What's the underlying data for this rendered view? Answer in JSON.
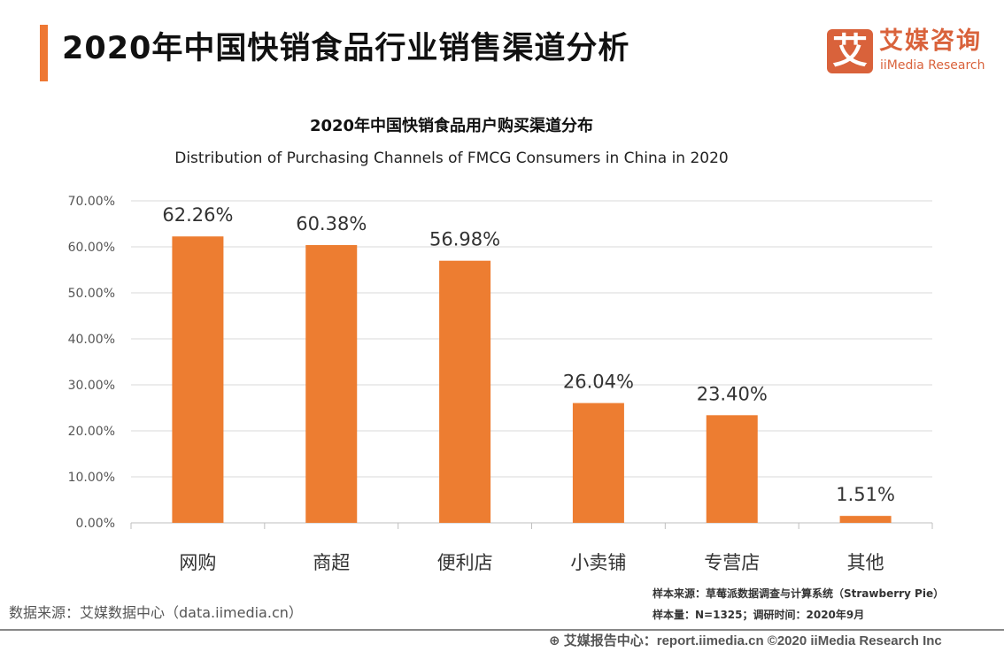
{
  "header": {
    "title": "2020年中国快销食品行业销售渠道分析"
  },
  "logo": {
    "mark": "艾",
    "name_cn": "艾媒咨询",
    "name_en": "iiMedia Research"
  },
  "chart_data": {
    "type": "bar",
    "title": "2020年中国快销食品用户购买渠道分布",
    "subtitle": "Distribution of Purchasing Channels of FMCG Consumers in China in 2020",
    "categories": [
      "网购",
      "商超",
      "便利店",
      "小卖铺",
      "专营店",
      "其他"
    ],
    "values": [
      62.26,
      60.38,
      56.98,
      26.04,
      23.4,
      1.51
    ],
    "data_labels": [
      "62.26%",
      "60.38%",
      "56.98%",
      "26.04%",
      "23.40%",
      "1.51%"
    ],
    "ylim": [
      0,
      70
    ],
    "yticks": [
      "0.00%",
      "10.00%",
      "20.00%",
      "30.00%",
      "40.00%",
      "50.00%",
      "60.00%",
      "70.00%"
    ],
    "grid": true,
    "bar_color": "#ed7d31"
  },
  "footer": {
    "source": "数据来源：艾媒数据中心（data.iimedia.cn）",
    "sample_source": "样本来源：草莓派数据调查与计算系统（Strawberry Pie）",
    "sample_size": "样本量：N=1325；调研时间：2020年9月",
    "copyright": "艾媒报告中心：report.iimedia.cn  ©2020  iiMedia Research  Inc"
  }
}
